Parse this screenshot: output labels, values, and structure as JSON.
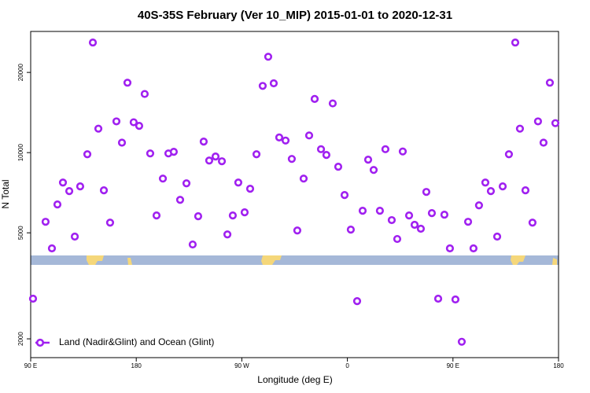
{
  "chart_data": {
    "type": "scatter",
    "title": "40S-35S February (Ver 10_MIP)   2015-01-01 to 2020-12-31",
    "xlabel": "Longitude (deg E)",
    "ylabel": "N Total",
    "xlim": [
      90,
      540
    ],
    "xticks": [
      {
        "value": 90,
        "label": "90 E"
      },
      {
        "value": 180,
        "label": "180"
      },
      {
        "value": 270,
        "label": "90 W"
      },
      {
        "value": 360,
        "label": "0"
      },
      {
        "value": 450,
        "label": "90 E"
      },
      {
        "value": 540,
        "label": "180"
      }
    ],
    "ylim": [
      1700,
      28500
    ],
    "yticks": [
      2000,
      5000,
      10000,
      20000
    ],
    "ylog": true,
    "legend": "lower left",
    "series": [
      {
        "name": "Land (Nadir&Glint) and Ocean (Glint)",
        "color": "#a020f0",
        "x": [
          92.0,
          102.7,
          108.1,
          112.8,
          117.5,
          122.9,
          127.6,
          132.2,
          138.3,
          143.0,
          147.7,
          152.4,
          157.7,
          163.1,
          167.8,
          172.5,
          177.8,
          182.5,
          187.2,
          191.9,
          197.3,
          202.7,
          207.4,
          212.0,
          217.4,
          222.8,
          228.1,
          232.8,
          237.5,
          242.2,
          247.6,
          253.0,
          257.7,
          262.3,
          267.0,
          272.4,
          277.1,
          282.5,
          287.8,
          292.5,
          297.2,
          301.9,
          307.3,
          312.6,
          317.3,
          322.7,
          327.4,
          332.1,
          337.5,
          342.1,
          347.5,
          352.2,
          357.6,
          362.9,
          368.3,
          373.0,
          377.7,
          382.4,
          387.7,
          392.4,
          397.8,
          402.5,
          407.2,
          412.6,
          417.3,
          422.6,
          427.3,
          432.0,
          437.4,
          442.7,
          447.4,
          452.1,
          457.5,
          462.9,
          467.5,
          472.2,
          477.6,
          482.3,
          487.7,
          492.4,
          497.7,
          503.1,
          507.1,
          511.8,
          517.8,
          522.5,
          527.2,
          532.6,
          537.3
        ],
        "values": [
          2830,
          5500,
          4370,
          6390,
          7720,
          7170,
          4840,
          7470,
          9860,
          25900,
          12300,
          7220,
          5460,
          13100,
          10900,
          18300,
          13000,
          12600,
          16600,
          9930,
          5810,
          7990,
          9930,
          10070,
          6650,
          7670,
          4520,
          5770,
          11000,
          9340,
          9670,
          9280,
          4930,
          5810,
          7720,
          5970,
          7320,
          9860,
          17800,
          22900,
          18200,
          11400,
          11100,
          9470,
          5100,
          7990,
          11600,
          15900,
          10300,
          9800,
          15300,
          8850,
          6930,
          5140,
          2770,
          6050,
          9410,
          8610,
          6050,
          10300,
          5580,
          4740,
          10100,
          5810,
          5360,
          5180,
          7120,
          5930,
          2830,
          5850,
          4370,
          2810,
          1950,
          5500,
          4370,
          6340,
          7720,
          7170,
          4840,
          7470,
          9860,
          25900,
          12300,
          7220,
          5460,
          13100,
          10900,
          18300,
          12900
        ]
      }
    ]
  }
}
